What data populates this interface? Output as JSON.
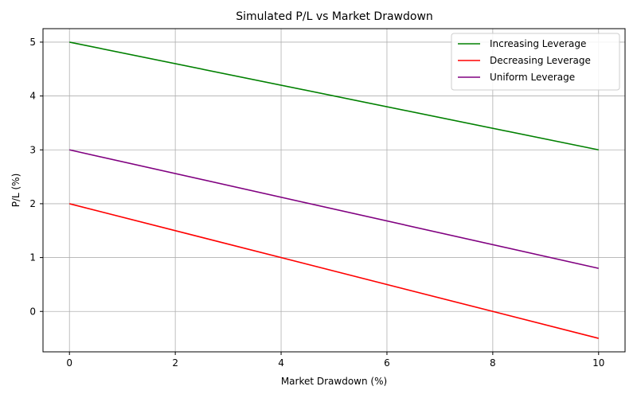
{
  "chart_data": {
    "type": "line",
    "title": "Simulated P/L vs Market Drawdown",
    "xlabel": "Market Drawdown (%)",
    "ylabel": "P/L (%)",
    "xlim": [
      -0.5,
      10.5
    ],
    "ylim": [
      -0.75,
      5.25
    ],
    "xticks": [
      0,
      2,
      4,
      6,
      8,
      10
    ],
    "yticks": [
      0,
      1,
      2,
      3,
      4,
      5
    ],
    "grid": true,
    "legend_position": "top-right",
    "x": [
      0,
      10
    ],
    "series": [
      {
        "name": "Increasing Leverage",
        "color": "#008000",
        "values": [
          5,
          3
        ]
      },
      {
        "name": "Decreasing Leverage",
        "color": "#ff0000",
        "values": [
          2,
          -0.5
        ]
      },
      {
        "name": "Uniform Leverage",
        "color": "#800080",
        "values": [
          3,
          0.8
        ]
      }
    ]
  }
}
